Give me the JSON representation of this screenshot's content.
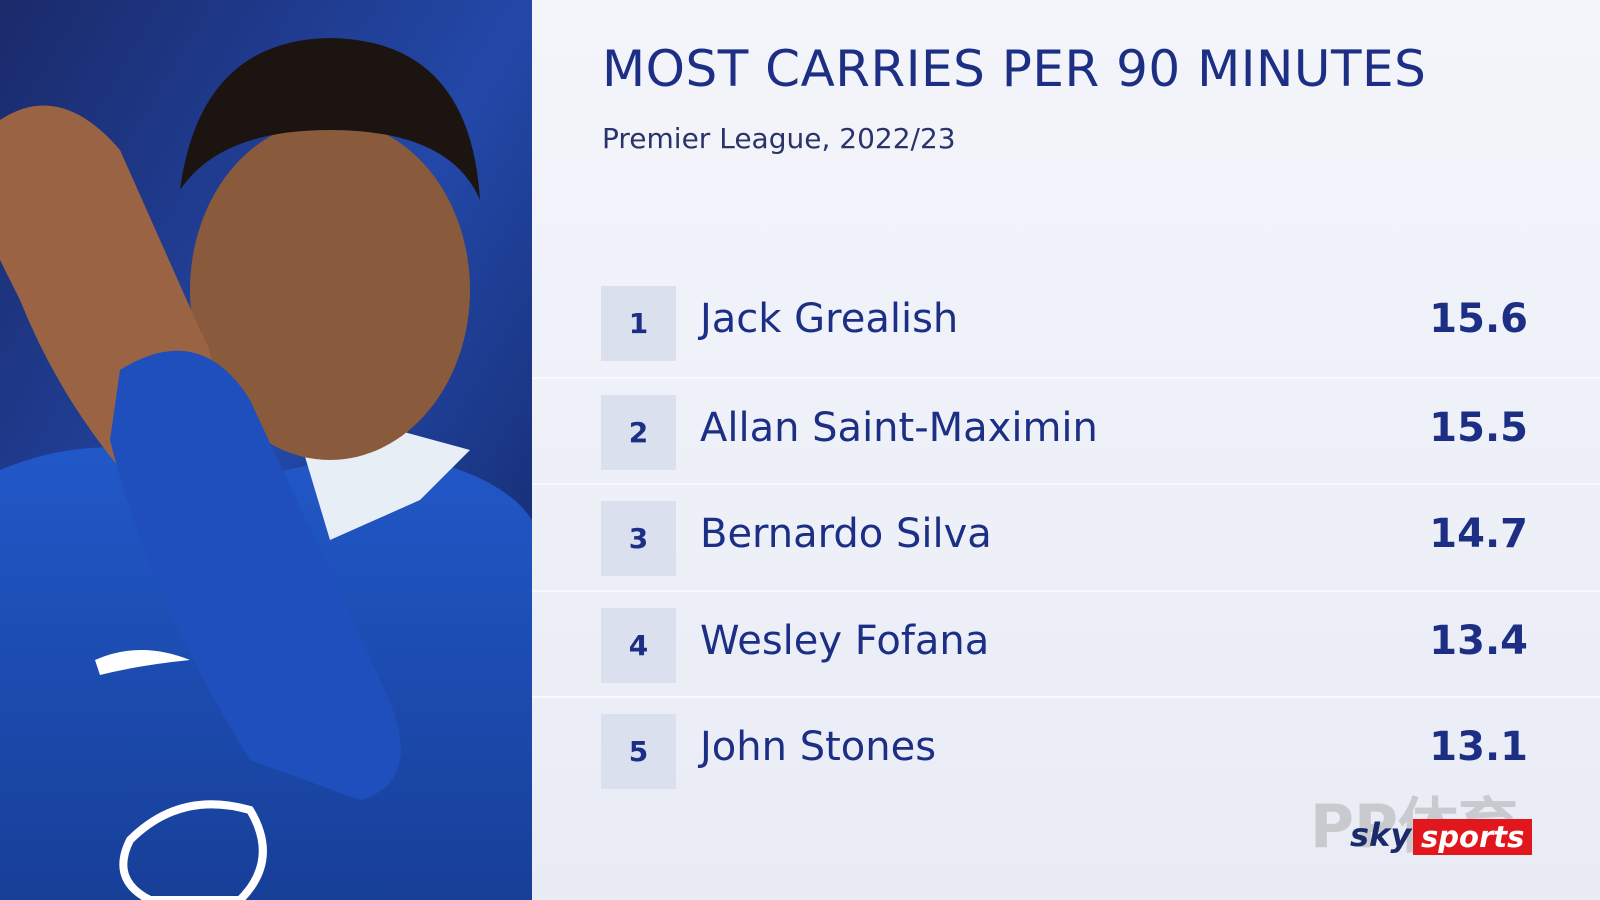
{
  "header": {
    "title": "MOST CARRIES PER 90 MINUTES",
    "subtitle": "Premier League, 2022/23"
  },
  "table": {
    "rows": [
      {
        "rank": 1,
        "name": "Jack Grealish",
        "value": 15.6
      },
      {
        "rank": 2,
        "name": "Allan Saint-Maximin",
        "value": 15.5
      },
      {
        "rank": 3,
        "name": "Bernardo Silva",
        "value": 14.7
      },
      {
        "rank": 4,
        "name": "Wesley Fofana",
        "value": 13.4
      },
      {
        "rank": 5,
        "name": "John Stones",
        "value": 13.1
      }
    ]
  },
  "logo": {
    "sky": "sky",
    "sports": "sports"
  },
  "watermark": "PP体育"
}
